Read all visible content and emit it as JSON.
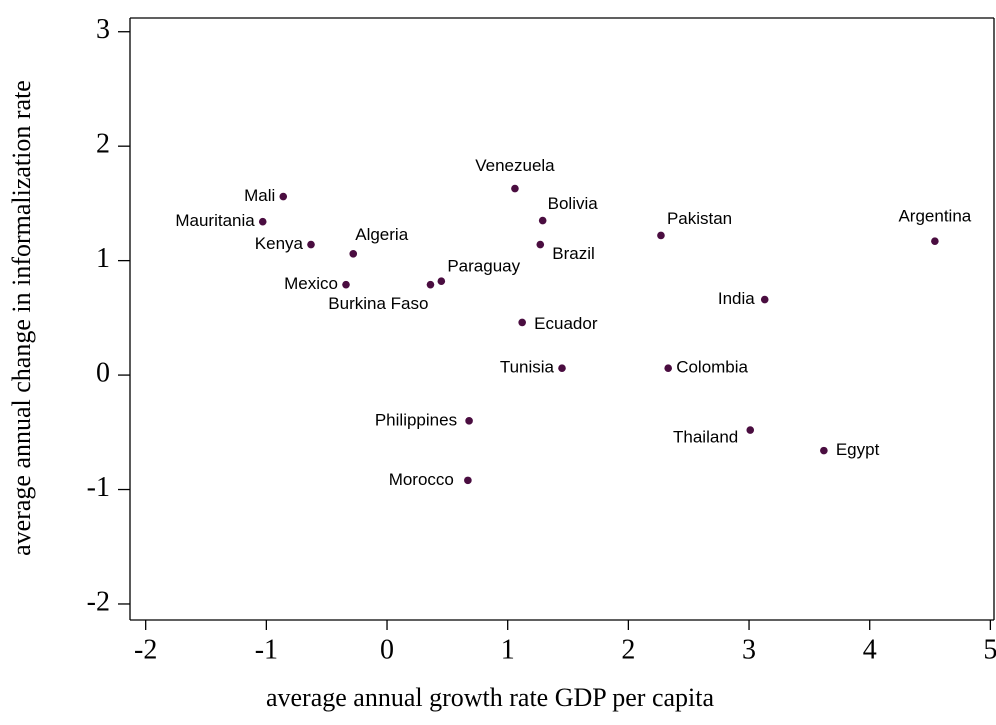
{
  "chart_data": {
    "type": "scatter",
    "x_label": "average annual growth rate GDP per capita",
    "y_label": "average annual change in informalization rate",
    "labels": [
      "Mali",
      "Mauritania",
      "Kenya",
      "Algeria",
      "Mexico",
      "Venezuela",
      "Bolivia",
      "Brazil",
      "Pakistan",
      "Argentina",
      "Paraguay",
      "Burkina Faso",
      "India",
      "Ecuador",
      "Tunisia",
      "Colombia",
      "Philippines",
      "Thailand",
      "Egypt",
      "Morocco"
    ],
    "x": [
      -0.86,
      -1.03,
      -0.63,
      -0.28,
      -0.34,
      1.06,
      1.29,
      1.27,
      2.27,
      4.54,
      0.45,
      0.36,
      3.13,
      1.12,
      1.45,
      2.33,
      0.68,
      3.01,
      3.62,
      0.67
    ],
    "values": [
      1.56,
      1.34,
      1.14,
      1.06,
      0.79,
      1.63,
      1.35,
      1.14,
      1.22,
      1.17,
      0.82,
      0.79,
      0.66,
      0.46,
      0.06,
      0.06,
      -0.4,
      -0.48,
      -0.66,
      -0.92
    ],
    "color": "#4a0d40",
    "xlim": [
      -2.13,
      5.03
    ],
    "xticks": [
      -2,
      -1,
      0,
      1,
      2,
      3,
      4,
      5
    ],
    "ylim": [
      -2.14,
      3.12
    ],
    "yticks": [
      -2,
      -1,
      0,
      1,
      2,
      3
    ]
  }
}
